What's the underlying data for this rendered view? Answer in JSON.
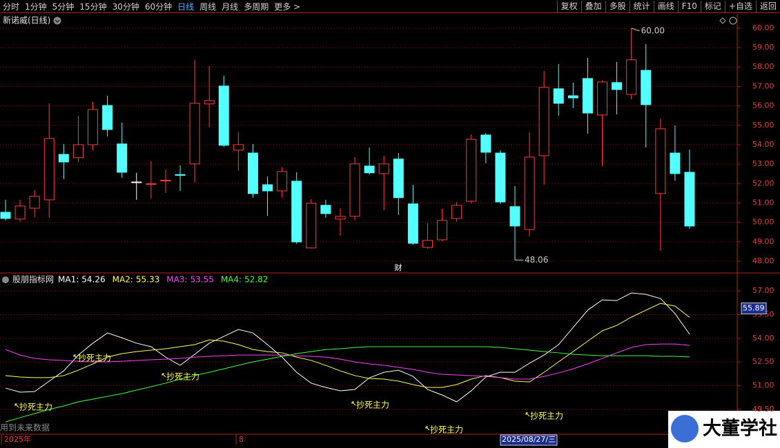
{
  "toolbar": {
    "left": [
      {
        "label": "分时"
      },
      {
        "label": "1分钟"
      },
      {
        "label": "5分钟"
      },
      {
        "label": "15分钟"
      },
      {
        "label": "30分钟"
      },
      {
        "label": "60分钟"
      },
      {
        "label": "日线",
        "active": true
      },
      {
        "label": "周线"
      },
      {
        "label": "月线"
      },
      {
        "label": "多周期"
      },
      {
        "label": "更多 >"
      }
    ],
    "right": [
      "复权",
      "叠加",
      "多股",
      "统计",
      "画线",
      "F10",
      "标记",
      "+自选",
      "返回"
    ]
  },
  "chart_data": [
    {
      "type": "candlestick",
      "title": "新诺威(日线)",
      "open": [
        50.52,
        50.17,
        50.73,
        51.16,
        53.5,
        53.33,
        54.0,
        56.02,
        54.04,
        52.08,
        51.95,
        52.13,
        52.46,
        53.01,
        56.1,
        57.02,
        53.72,
        53.57,
        51.94,
        51.62,
        52.12,
        48.68,
        50.88,
        50.17,
        50.31,
        52.9,
        52.51,
        53.26,
        50.95,
        48.71,
        49.1,
        50.2,
        51.09,
        54.5,
        53.57,
        50.81,
        49.63,
        53.43,
        56.88,
        56.52,
        57.41,
        55.53,
        57.2,
        56.59,
        57.83,
        51.48,
        53.57,
        52.58
      ],
      "high": [
        51.16,
        51.16,
        51.66,
        56.13,
        54.04,
        55.49,
        56.2,
        56.52,
        55.14,
        52.55,
        53.15,
        52.72,
        52.94,
        58.37,
        58.05,
        57.55,
        54.64,
        54.04,
        52.37,
        52.83,
        52.58,
        51.2,
        51.16,
        50.73,
        53.36,
        53.86,
        53.43,
        53.57,
        51.94,
        49.95,
        50.7,
        51.05,
        54.53,
        54.6,
        53.72,
        51.87,
        54.64,
        57.8,
        58.15,
        57.2,
        58.47,
        57.3,
        58.26,
        60.0,
        59.18,
        55.35,
        54.99,
        53.75
      ],
      "low": [
        50.1,
        50.03,
        50.27,
        50.24,
        52.23,
        53.11,
        53.72,
        54.43,
        52.3,
        51.16,
        51.23,
        51.52,
        51.62,
        52.05,
        54.89,
        53.89,
        52.65,
        51.27,
        50.34,
        51.27,
        48.89,
        48.68,
        50.24,
        49.31,
        50.1,
        52.47,
        50.63,
        50.38,
        48.85,
        48.64,
        49.03,
        50.03,
        50.98,
        53.04,
        50.95,
        48.06,
        49.28,
        51.94,
        55.49,
        55.88,
        54.57,
        52.9,
        55.56,
        56.34,
        53.86,
        48.53,
        52.15,
        49.67
      ],
      "close": [
        50.2,
        50.84,
        51.34,
        54.32,
        53.11,
        54.0,
        55.81,
        54.78,
        52.58,
        52.08,
        51.99,
        52.17,
        52.42,
        56.13,
        56.27,
        53.97,
        54.0,
        51.48,
        51.62,
        52.62,
        48.99,
        50.98,
        50.45,
        50.31,
        53.01,
        52.55,
        53.01,
        51.27,
        48.92,
        49.07,
        50.1,
        50.88,
        54.28,
        53.61,
        51.05,
        49.81,
        53.36,
        56.95,
        56.13,
        56.41,
        55.63,
        57.23,
        56.84,
        58.37,
        56.06,
        54.82,
        52.51,
        49.81
      ],
      "up_color": "#ff3c3c",
      "down_color": "#54ffff",
      "flat_color": "#ffffff",
      "ylim": [
        47.43,
        60.6
      ],
      "yticks": [
        {
          "value": 48,
          "label": "48.00"
        },
        {
          "value": 49,
          "label": "49.00"
        },
        {
          "value": 50,
          "label": "50.00"
        },
        {
          "value": 51,
          "label": "51.00"
        },
        {
          "value": 52,
          "label": "52.00"
        },
        {
          "value": 53,
          "label": "53.00"
        },
        {
          "value": 54,
          "label": "54.00"
        },
        {
          "value": 55,
          "label": "55.00"
        },
        {
          "value": 56,
          "label": "56.00"
        },
        {
          "value": 57,
          "label": "57.00"
        },
        {
          "value": 58,
          "label": "58.00"
        },
        {
          "value": 59,
          "label": "59.00"
        },
        {
          "value": 60,
          "label": "60.00"
        }
      ],
      "grid": true,
      "extremes": [
        {
          "value": 60,
          "label": "60.00",
          "kind": "high"
        },
        {
          "value": 48.06,
          "label": "48.06",
          "kind": "low"
        }
      ],
      "markers": [
        "财"
      ]
    },
    {
      "type": "line",
      "title": "股朋指标网",
      "series": [
        {
          "name": "MA1:",
          "color": "#ffffff",
          "values": [
            50.85,
            50.59,
            50.63,
            51.29,
            51.94,
            52.94,
            53.69,
            54.34,
            54.03,
            53.69,
            53.47,
            52.81,
            52.29,
            52.99,
            53.69,
            54.12,
            54.56,
            54.34,
            53.6,
            52.81,
            51.85,
            51.16,
            50.89,
            50.68,
            50.76,
            51.5,
            51.85,
            51.98,
            51.59,
            50.76,
            50.41,
            49.98,
            50.68,
            51.55,
            51.85,
            51.85,
            52.42,
            52.94,
            53.6,
            54.69,
            55.78,
            56.43,
            56.39,
            56.87,
            56.78,
            56.52,
            55.56,
            54.26
          ]
        },
        {
          "name": "MA2:",
          "color": "#ffff54",
          "values": [
            51.64,
            51.55,
            51.51,
            51.51,
            51.64,
            51.98,
            52.38,
            52.81,
            53.03,
            53.16,
            53.25,
            53.34,
            53.47,
            53.6,
            53.9,
            53.82,
            53.6,
            53.29,
            53.16,
            53.08,
            52.81,
            52.6,
            52.29,
            51.94,
            51.64,
            51.46,
            51.42,
            51.29,
            51.07,
            50.89,
            50.89,
            51.07,
            51.42,
            51.64,
            51.51,
            51.29,
            51.24,
            51.85,
            52.51,
            53.16,
            53.82,
            54.47,
            54.82,
            55.34,
            55.78,
            56.21,
            56.04,
            55.33
          ]
        },
        {
          "name": "MA3:",
          "color": "#ff40ff",
          "values": [
            53.29,
            52.94,
            52.73,
            52.64,
            52.6,
            52.55,
            52.51,
            52.51,
            52.55,
            52.6,
            52.64,
            52.68,
            52.73,
            52.81,
            52.86,
            52.9,
            52.94,
            52.94,
            52.94,
            52.94,
            52.9,
            52.86,
            52.81,
            52.68,
            52.51,
            52.38,
            52.29,
            52.16,
            52.03,
            51.85,
            51.72,
            51.68,
            51.64,
            51.59,
            51.51,
            51.42,
            51.42,
            51.59,
            51.81,
            52.07,
            52.38,
            52.73,
            53.08,
            53.42,
            53.6,
            53.64,
            53.64,
            53.55
          ]
        },
        {
          "name": "MA4:",
          "color": "#40ff40",
          "values": [
            48.71,
            48.98,
            49.24,
            49.5,
            49.72,
            49.98,
            50.15,
            50.33,
            50.5,
            50.72,
            50.94,
            51.16,
            51.42,
            51.64,
            51.85,
            52.07,
            52.29,
            52.51,
            52.68,
            52.86,
            53.03,
            53.16,
            53.29,
            53.34,
            53.42,
            53.47,
            53.47,
            53.47,
            53.47,
            53.47,
            53.47,
            53.47,
            53.47,
            53.47,
            53.42,
            53.34,
            53.25,
            53.16,
            53.08,
            52.99,
            52.94,
            52.9,
            52.9,
            52.9,
            52.9,
            52.86,
            52.86,
            52.82
          ]
        }
      ],
      "ylim": [
        47.93,
        58.05
      ],
      "yticks": [
        {
          "value": 49.5,
          "label": "49.50"
        },
        {
          "value": 51,
          "label": "51.00"
        },
        {
          "value": 52.5,
          "label": "52.50"
        },
        {
          "value": 54,
          "label": "54.00"
        },
        {
          "value": 55.5,
          "label": "55.50"
        },
        {
          "value": 57,
          "label": "57.00"
        }
      ],
      "grid": true,
      "cursor_value": 55.89,
      "annotations": [
        "抄死主力",
        "抄死主力",
        "抄死主力",
        "抄死主力",
        "抄死主力",
        "抄死主力"
      ],
      "note": "用到未来数据"
    }
  ],
  "time_axis": [
    "2025年",
    "8",
    "2025/08/27/三"
  ],
  "logo": "大董学社"
}
